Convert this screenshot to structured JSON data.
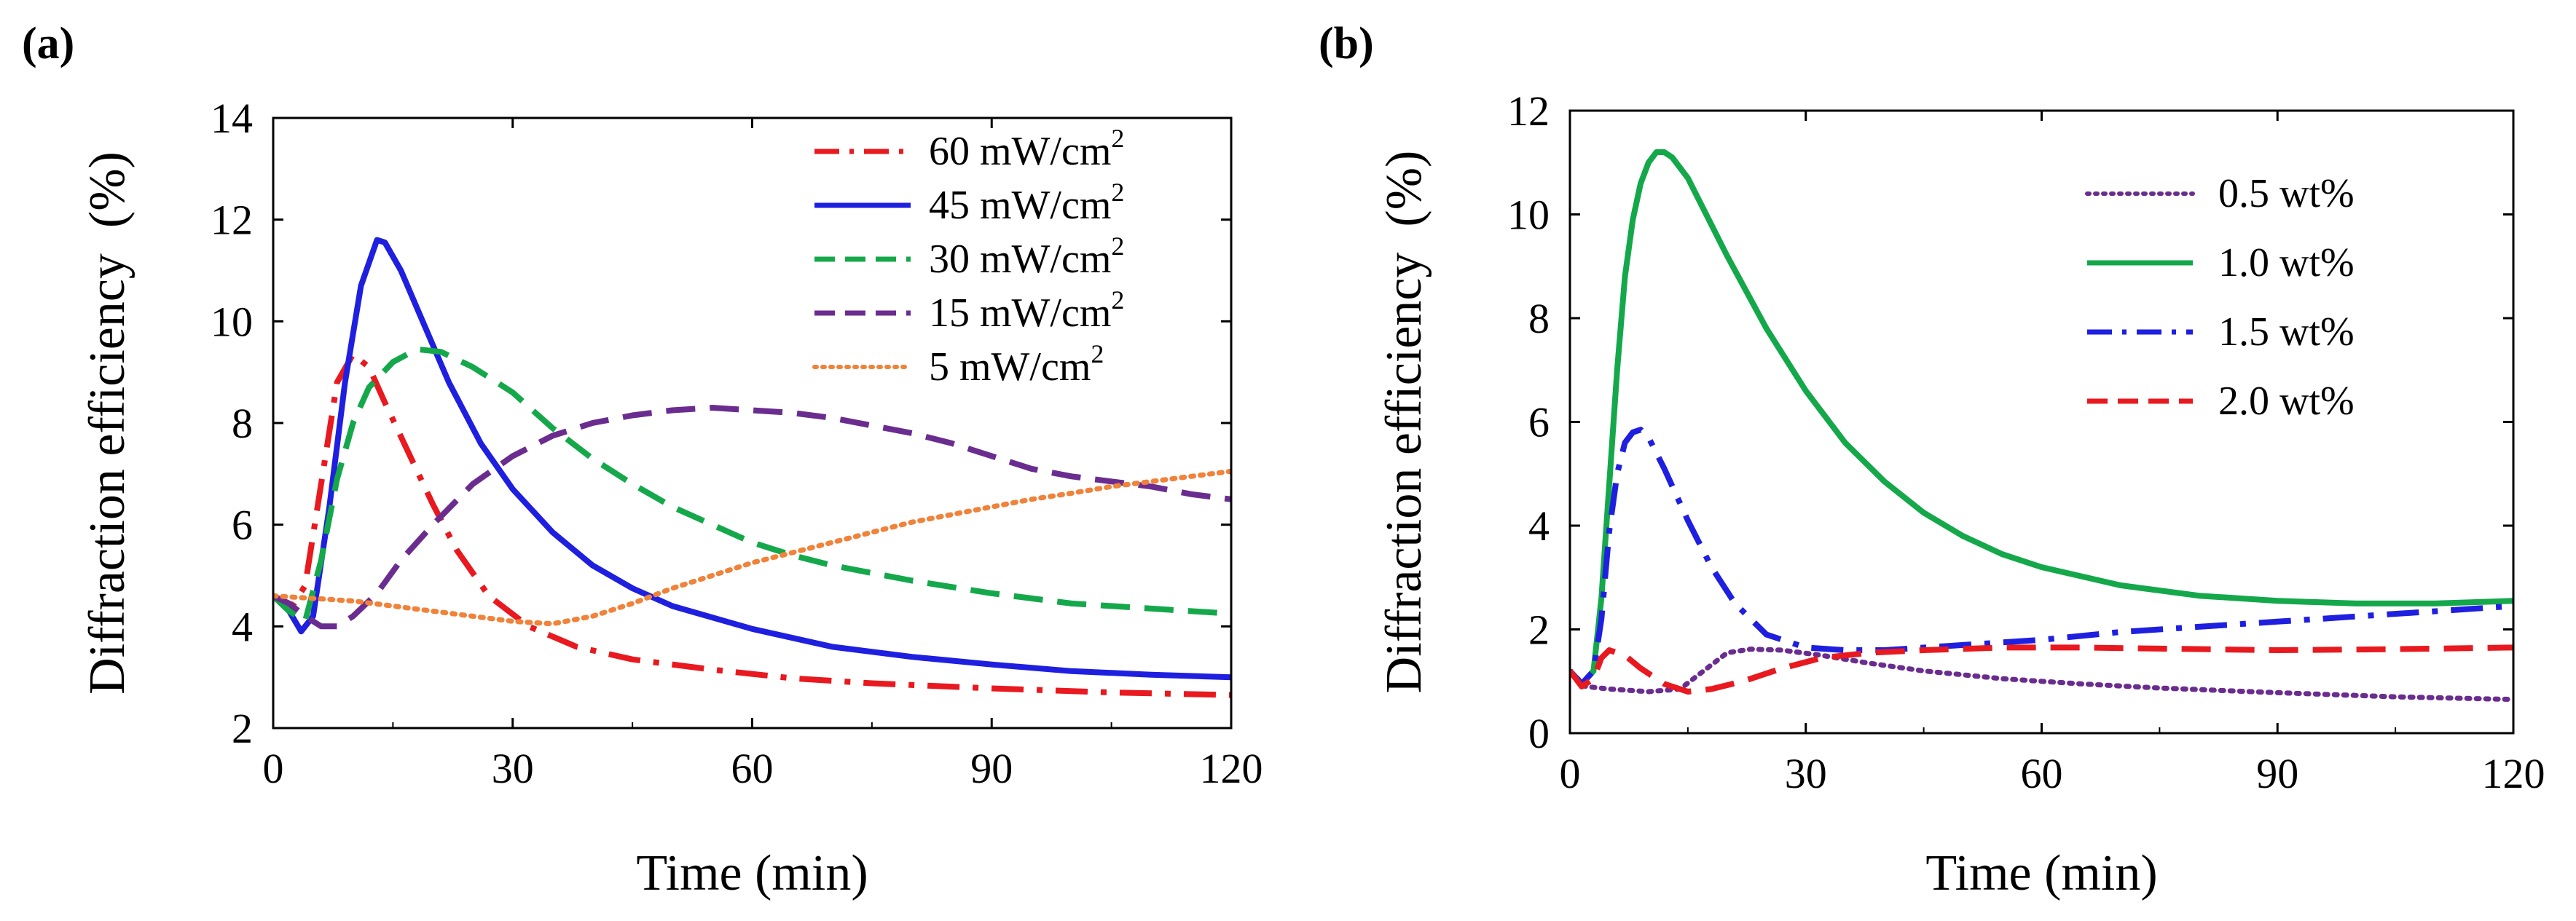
{
  "chart_data": [
    {
      "panel_label": "(a)",
      "type": "line",
      "xlabel": "Time (min)",
      "ylabel": "Diffraction efficiency  (%)",
      "xlim": [
        0,
        120
      ],
      "ylim": [
        2,
        14
      ],
      "xticks": [
        0,
        30,
        60,
        90,
        120
      ],
      "yticks": [
        2,
        4,
        6,
        8,
        10,
        12,
        14
      ],
      "legend_position": "top-right",
      "series": [
        {
          "name": "60 mW/cm",
          "sup": "2",
          "color": "#e8191f",
          "dash": "dashdot",
          "points": [
            [
              0,
              4.6
            ],
            [
              2,
              4.3
            ],
            [
              4,
              4.8
            ],
            [
              6,
              6.8
            ],
            [
              8,
              8.8
            ],
            [
              10,
              9.35
            ],
            [
              12,
              9.1
            ],
            [
              14,
              8.4
            ],
            [
              17,
              7.4
            ],
            [
              20,
              6.4
            ],
            [
              23,
              5.5
            ],
            [
              27,
              4.6
            ],
            [
              32,
              4.0
            ],
            [
              38,
              3.6
            ],
            [
              45,
              3.35
            ],
            [
              55,
              3.15
            ],
            [
              65,
              2.98
            ],
            [
              75,
              2.88
            ],
            [
              90,
              2.78
            ],
            [
              105,
              2.7
            ],
            [
              120,
              2.65
            ]
          ]
        },
        {
          "name": "45 mW/cm",
          "sup": "2",
          "color": "#1f1fe0",
          "dash": "solid",
          "points": [
            [
              0,
              4.6
            ],
            [
              2,
              4.3
            ],
            [
              3.5,
              3.9
            ],
            [
              5,
              4.2
            ],
            [
              7,
              6.3
            ],
            [
              9,
              8.8
            ],
            [
              11,
              10.7
            ],
            [
              13,
              11.6
            ],
            [
              14,
              11.55
            ],
            [
              16,
              11.0
            ],
            [
              19,
              9.9
            ],
            [
              22,
              8.8
            ],
            [
              26,
              7.6
            ],
            [
              30,
              6.7
            ],
            [
              35,
              5.85
            ],
            [
              40,
              5.2
            ],
            [
              45,
              4.75
            ],
            [
              50,
              4.4
            ],
            [
              60,
              3.95
            ],
            [
              70,
              3.6
            ],
            [
              80,
              3.4
            ],
            [
              90,
              3.25
            ],
            [
              100,
              3.12
            ],
            [
              110,
              3.05
            ],
            [
              120,
              3.0
            ]
          ]
        },
        {
          "name": "30 mW/cm",
          "sup": "2",
          "color": "#14a84b",
          "dash": "dashed",
          "points": [
            [
              0,
              4.6
            ],
            [
              2,
              4.3
            ],
            [
              4,
              4.1
            ],
            [
              6,
              5.3
            ],
            [
              8,
              6.9
            ],
            [
              10,
              8.0
            ],
            [
              12,
              8.7
            ],
            [
              15,
              9.2
            ],
            [
              18,
              9.45
            ],
            [
              21,
              9.4
            ],
            [
              25,
              9.1
            ],
            [
              30,
              8.6
            ],
            [
              35,
              7.9
            ],
            [
              40,
              7.3
            ],
            [
              45,
              6.8
            ],
            [
              50,
              6.35
            ],
            [
              55,
              6.0
            ],
            [
              60,
              5.65
            ],
            [
              65,
              5.4
            ],
            [
              70,
              5.2
            ],
            [
              80,
              4.9
            ],
            [
              90,
              4.65
            ],
            [
              100,
              4.45
            ],
            [
              110,
              4.35
            ],
            [
              120,
              4.25
            ]
          ]
        },
        {
          "name": "15 mW/cm",
          "sup": "2",
          "color": "#6a2d8f",
          "dash": "dashed",
          "points": [
            [
              0,
              4.6
            ],
            [
              2,
              4.45
            ],
            [
              4,
              4.2
            ],
            [
              6,
              4.0
            ],
            [
              8,
              4.0
            ],
            [
              10,
              4.2
            ],
            [
              13,
              4.65
            ],
            [
              16,
              5.3
            ],
            [
              20,
              6.0
            ],
            [
              25,
              6.8
            ],
            [
              30,
              7.35
            ],
            [
              35,
              7.75
            ],
            [
              40,
              8.0
            ],
            [
              45,
              8.15
            ],
            [
              50,
              8.25
            ],
            [
              55,
              8.3
            ],
            [
              60,
              8.25
            ],
            [
              65,
              8.2
            ],
            [
              70,
              8.1
            ],
            [
              75,
              7.95
            ],
            [
              80,
              7.8
            ],
            [
              85,
              7.6
            ],
            [
              90,
              7.35
            ],
            [
              95,
              7.1
            ],
            [
              100,
              6.95
            ],
            [
              105,
              6.85
            ],
            [
              110,
              6.75
            ],
            [
              115,
              6.6
            ],
            [
              120,
              6.5
            ]
          ]
        },
        {
          "name": "5 mW/cm",
          "sup": "2",
          "color": "#f0823a",
          "dash": "dotted",
          "points": [
            [
              0,
              4.6
            ],
            [
              5,
              4.55
            ],
            [
              10,
              4.5
            ],
            [
              15,
              4.4
            ],
            [
              20,
              4.3
            ],
            [
              25,
              4.2
            ],
            [
              30,
              4.1
            ],
            [
              35,
              4.05
            ],
            [
              40,
              4.2
            ],
            [
              45,
              4.45
            ],
            [
              50,
              4.75
            ],
            [
              55,
              5.0
            ],
            [
              60,
              5.25
            ],
            [
              65,
              5.45
            ],
            [
              70,
              5.65
            ],
            [
              75,
              5.85
            ],
            [
              80,
              6.05
            ],
            [
              85,
              6.2
            ],
            [
              90,
              6.35
            ],
            [
              95,
              6.5
            ],
            [
              100,
              6.62
            ],
            [
              105,
              6.75
            ],
            [
              110,
              6.85
            ],
            [
              115,
              6.95
            ],
            [
              120,
              7.05
            ]
          ]
        }
      ]
    },
    {
      "panel_label": "(b)",
      "type": "line",
      "xlabel": "Time (min)",
      "ylabel": "Diffraction efficiency  (%)",
      "xlim": [
        0,
        120
      ],
      "ylim": [
        0,
        12
      ],
      "xticks": [
        0,
        30,
        60,
        90,
        120
      ],
      "yticks": [
        0,
        2,
        4,
        6,
        8,
        10,
        12
      ],
      "legend_position": "top-right",
      "series": [
        {
          "name": "0.5 wt%",
          "color": "#6a2d8f",
          "dash": "dotted",
          "points": [
            [
              0,
              1.2
            ],
            [
              2,
              0.9
            ],
            [
              5,
              0.85
            ],
            [
              10,
              0.8
            ],
            [
              14,
              0.85
            ],
            [
              17,
              1.2
            ],
            [
              20,
              1.55
            ],
            [
              23,
              1.62
            ],
            [
              27,
              1.6
            ],
            [
              32,
              1.5
            ],
            [
              38,
              1.35
            ],
            [
              45,
              1.2
            ],
            [
              55,
              1.05
            ],
            [
              65,
              0.95
            ],
            [
              75,
              0.87
            ],
            [
              90,
              0.78
            ],
            [
              105,
              0.7
            ],
            [
              120,
              0.65
            ]
          ]
        },
        {
          "name": "1.0 wt%",
          "color": "#14a84b",
          "dash": "solid",
          "points": [
            [
              0,
              1.2
            ],
            [
              1.5,
              0.95
            ],
            [
              3,
              1.2
            ],
            [
              4,
              2.6
            ],
            [
              5,
              4.8
            ],
            [
              6,
              7.0
            ],
            [
              7,
              8.8
            ],
            [
              8,
              9.9
            ],
            [
              9,
              10.6
            ],
            [
              10,
              11.0
            ],
            [
              11,
              11.2
            ],
            [
              12,
              11.2
            ],
            [
              13,
              11.1
            ],
            [
              15,
              10.7
            ],
            [
              17,
              10.1
            ],
            [
              20,
              9.2
            ],
            [
              25,
              7.8
            ],
            [
              30,
              6.6
            ],
            [
              35,
              5.6
            ],
            [
              40,
              4.85
            ],
            [
              45,
              4.25
            ],
            [
              50,
              3.8
            ],
            [
              55,
              3.45
            ],
            [
              60,
              3.2
            ],
            [
              70,
              2.85
            ],
            [
              80,
              2.65
            ],
            [
              90,
              2.55
            ],
            [
              100,
              2.5
            ],
            [
              110,
              2.5
            ],
            [
              120,
              2.55
            ]
          ]
        },
        {
          "name": "1.5 wt%",
          "color": "#1f1fe0",
          "dash": "dashdot",
          "points": [
            [
              0,
              1.2
            ],
            [
              1.5,
              0.95
            ],
            [
              3,
              1.2
            ],
            [
              4,
              2.2
            ],
            [
              5,
              3.9
            ],
            [
              6,
              5.0
            ],
            [
              7,
              5.6
            ],
            [
              8,
              5.8
            ],
            [
              9,
              5.85
            ],
            [
              10,
              5.7
            ],
            [
              12,
              5.1
            ],
            [
              15,
              4.1
            ],
            [
              18,
              3.2
            ],
            [
              21,
              2.5
            ],
            [
              25,
              1.9
            ],
            [
              30,
              1.65
            ],
            [
              35,
              1.6
            ],
            [
              40,
              1.6
            ],
            [
              50,
              1.7
            ],
            [
              60,
              1.8
            ],
            [
              70,
              1.95
            ],
            [
              80,
              2.05
            ],
            [
              90,
              2.15
            ],
            [
              100,
              2.25
            ],
            [
              110,
              2.35
            ],
            [
              120,
              2.45
            ]
          ]
        },
        {
          "name": "2.0 wt%",
          "color": "#e8191f",
          "dash": "dashed",
          "points": [
            [
              0,
              1.2
            ],
            [
              1.5,
              0.9
            ],
            [
              3,
              1.05
            ],
            [
              4,
              1.45
            ],
            [
              5,
              1.6
            ],
            [
              7,
              1.5
            ],
            [
              9,
              1.25
            ],
            [
              12,
              0.95
            ],
            [
              15,
              0.8
            ],
            [
              18,
              0.85
            ],
            [
              22,
              1.0
            ],
            [
              27,
              1.25
            ],
            [
              32,
              1.45
            ],
            [
              38,
              1.55
            ],
            [
              45,
              1.6
            ],
            [
              55,
              1.65
            ],
            [
              65,
              1.65
            ],
            [
              75,
              1.63
            ],
            [
              90,
              1.6
            ],
            [
              105,
              1.62
            ],
            [
              120,
              1.65
            ]
          ]
        }
      ]
    }
  ]
}
